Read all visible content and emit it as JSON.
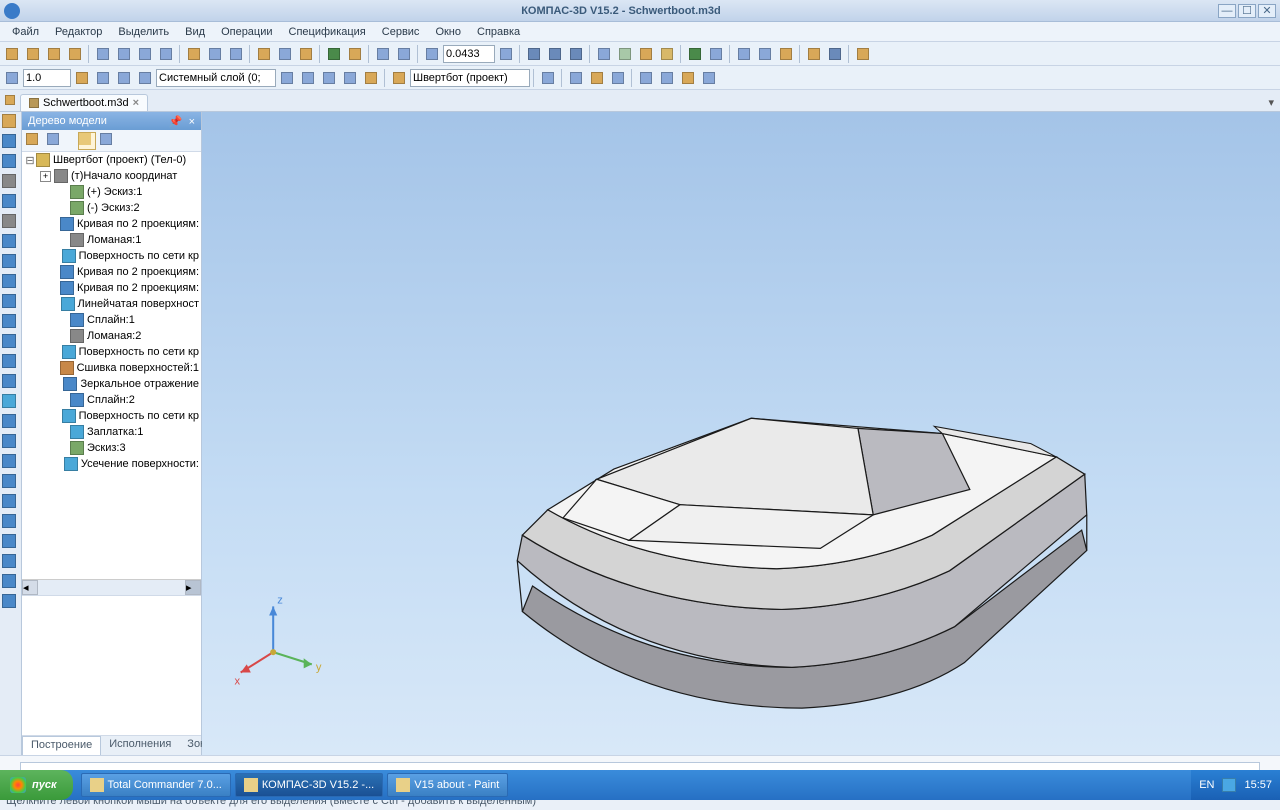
{
  "window": {
    "title": "КОМПАС-3D V15.2  -  Schwertboot.m3d"
  },
  "menu": [
    "Файл",
    "Редактор",
    "Выделить",
    "Вид",
    "Операции",
    "Спецификация",
    "Сервис",
    "Окно",
    "Справка"
  ],
  "toolbar1": {
    "zoom_value": "0.0433",
    "icon_colors": [
      "#d8a858",
      "#d8a858",
      "#d8a858",
      "#d8a858",
      "#8aa8d8",
      "#8aa8d8",
      "#8aa8d8",
      "#8aa8d8",
      "#d8a858",
      "#8aa8d8",
      "#8aa8d8",
      "#d8a858",
      "#8aa8d8",
      "#d8a858",
      "#4a8a4a",
      "#d8a858",
      "#8aa8d8",
      "#8aa8d8"
    ],
    "post_colors": [
      "#6a8aba",
      "#6a8aba",
      "#6a8aba",
      "#8aa8d8",
      "#a8c8a8",
      "#d8a858",
      "#d8b868",
      "#4a8a4a",
      "#8aa8d8",
      "#8aa8d8",
      "#8aa8d8",
      "#d8a858",
      "#d8a858",
      "#6a8aba",
      "#d8a858"
    ]
  },
  "toolbar2": {
    "scale_value": "1.0",
    "layer_label": "Системный слой (0;",
    "project_label": "Швертбот (проект)",
    "icon_colors_a": [
      "#d8a858",
      "#8aa8d8",
      "#8aa8d8",
      "#8aa8d8"
    ],
    "icon_colors_b": [
      "#8aa8d8",
      "#8aa8d8",
      "#8aa8d8",
      "#8aa8d8",
      "#d8a858"
    ],
    "icon_colors_c": [
      "#8aa8d8",
      "#8aa8d8",
      "#d8a858",
      "#8aa8d8",
      "#8aa8d8",
      "#8aa8d8",
      "#d8a858",
      "#8aa8d8"
    ]
  },
  "doc_tab": {
    "label": "Schwertboot.m3d"
  },
  "model_tree": {
    "title": "Дерево модели",
    "root": "Швертбот (проект) (Тел-0)",
    "items": [
      {
        "icon": "#888888",
        "label": "(т)Начало координат",
        "indent": 1,
        "expand": "+"
      },
      {
        "icon": "#7aa868",
        "label": "(+) Эскиз:1",
        "indent": 2
      },
      {
        "icon": "#7aa868",
        "label": "(-) Эскиз:2",
        "indent": 2
      },
      {
        "icon": "#4a88c8",
        "label": "Кривая по 2 проекциям:",
        "indent": 2
      },
      {
        "icon": "#888888",
        "label": "Ломаная:1",
        "indent": 2
      },
      {
        "icon": "#4aa8d8",
        "label": "Поверхность по сети кр",
        "indent": 2
      },
      {
        "icon": "#4a88c8",
        "label": "Кривая по 2 проекциям:",
        "indent": 2
      },
      {
        "icon": "#4a88c8",
        "label": "Кривая по 2 проекциям:",
        "indent": 2
      },
      {
        "icon": "#4aa8d8",
        "label": "Линейчатая поверхност",
        "indent": 2
      },
      {
        "icon": "#4a88c8",
        "label": "Сплайн:1",
        "indent": 2
      },
      {
        "icon": "#888888",
        "label": "Ломаная:2",
        "indent": 2
      },
      {
        "icon": "#4aa8d8",
        "label": "Поверхность по сети кр",
        "indent": 2
      },
      {
        "icon": "#c88848",
        "label": "Сшивка поверхностей:1",
        "indent": 2
      },
      {
        "icon": "#4a88c8",
        "label": "Зеркальное отражение",
        "indent": 2
      },
      {
        "icon": "#4a88c8",
        "label": "Сплайн:2",
        "indent": 2
      },
      {
        "icon": "#4aa8d8",
        "label": "Поверхность по сети кр",
        "indent": 2
      },
      {
        "icon": "#4aa8d8",
        "label": "Заплатка:1",
        "indent": 2
      },
      {
        "icon": "#7aa868",
        "label": "Эскиз:3",
        "indent": 2
      },
      {
        "icon": "#4aa8d8",
        "label": "Усечение поверхности:",
        "indent": 2
      }
    ],
    "tabs": [
      "Построение",
      "Исполнения",
      "Зоны"
    ]
  },
  "left_strip_colors": [
    "#d8a858",
    "#4a88c8",
    "#4a88c8",
    "#888888",
    "#4a88c8",
    "#888888",
    "#4a88c8",
    "#4a88c8",
    "#4a88c8",
    "#4a88c8",
    "#4a88c8",
    "#4a88c8",
    "#4a88c8",
    "#4a88c8",
    "#4aa8d8",
    "#4a88c8",
    "#4a88c8",
    "#4a88c8",
    "#4a88c8",
    "#4a88c8",
    "#4a88c8",
    "#4a88c8",
    "#4a88c8",
    "#4a88c8",
    "#4a88c8"
  ],
  "viewport": {
    "background_top": "#a4c4e8",
    "background_bottom": "#d8e8f8",
    "axes": {
      "x": {
        "color": "#d84848",
        "label": "x"
      },
      "y": {
        "color": "#d8b848",
        "label": "y"
      },
      "z": {
        "color": "#4888d8",
        "label": "z"
      }
    },
    "boat": {
      "hull_light": "#d4d4d4",
      "hull_mid": "#babac0",
      "hull_dark": "#9a9aa0",
      "deck": "#f4f4f4",
      "stroke": "#1a1a1a"
    }
  },
  "status": "Щелкните левой кнопкой мыши на объекте для его выделения (вместе с Ctrl - добавить к выделенным)",
  "taskbar": {
    "start": "пуск",
    "items": [
      "Total Commander 7.0...",
      "КОМПАС-3D V15.2  -...",
      "V15 about - Paint"
    ],
    "lang": "EN",
    "time": "15:57"
  }
}
